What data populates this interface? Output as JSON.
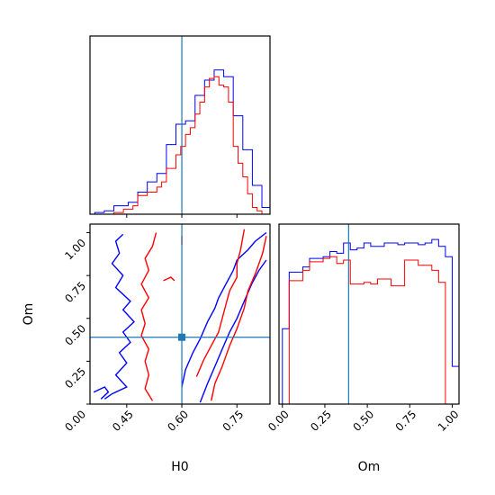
{
  "chart_data": {
    "type": "corner-plot",
    "parameters": [
      "H0",
      "Om"
    ],
    "truth": {
      "H0": 0.6,
      "Om": 0.39
    },
    "colors": {
      "chain_a": "#0000ff",
      "chain_b": "#ff0000",
      "truth": "#1f77b4",
      "axes": "#000000"
    },
    "panels": {
      "hist_H0": {
        "type": "histogram",
        "xlabel": "",
        "xlim": [
          0.35,
          0.84
        ],
        "ylim": [
          0,
          1.05
        ],
        "bins": [
          0.35,
          0.363,
          0.376,
          0.389,
          0.402,
          0.415,
          0.428,
          0.441,
          0.454,
          0.467,
          0.48,
          0.493,
          0.506,
          0.519,
          0.532,
          0.545,
          0.558,
          0.571,
          0.584,
          0.597,
          0.61,
          0.623,
          0.636,
          0.649,
          0.662,
          0.675,
          0.688,
          0.701,
          0.714,
          0.727,
          0.74,
          0.753,
          0.766,
          0.779,
          0.792,
          0.805,
          0.818,
          0.831,
          0.84
        ],
        "series": [
          {
            "name": "",
            "color": "#0000ff",
            "values": [
              0,
              0.01,
              0.01,
              0.02,
              0.02,
              0.05,
              0.05,
              0.05,
              0.07,
              0.07,
              0.13,
              0.13,
              0.19,
              0.19,
              0.24,
              0.24,
              0.41,
              0.41,
              0.53,
              0.53,
              0.55,
              0.55,
              0.7,
              0.7,
              0.79,
              0.79,
              0.85,
              0.85,
              0.81,
              0.81,
              0.58,
              0.58,
              0.38,
              0.38,
              0.17,
              0.17,
              0.04,
              0.04
            ]
          },
          {
            "name": "",
            "color": "#ff0000",
            "values": [
              0,
              0,
              0,
              0,
              0,
              0.01,
              0.01,
              0.03,
              0.03,
              0.05,
              0.11,
              0.11,
              0.13,
              0.13,
              0.16,
              0.19,
              0.27,
              0.27,
              0.35,
              0.4,
              0.47,
              0.51,
              0.59,
              0.66,
              0.75,
              0.8,
              0.81,
              0.76,
              0.75,
              0.66,
              0.4,
              0.3,
              0.22,
              0.12,
              0.04,
              0.02,
              0,
              0
            ]
          }
        ]
      },
      "contour_H0_Om": {
        "type": "contour",
        "xlabel": "H0",
        "ylabel": "Om",
        "xlim": [
          0.35,
          0.84
        ],
        "ylim": [
          0.0,
          1.05
        ],
        "xticks": [
          "0.45",
          "0.60",
          "0.75"
        ],
        "yticks": [
          "0.00",
          "0.25",
          "0.50",
          "0.75",
          "1.00"
        ],
        "contours": [
          {
            "color": "#0000ff",
            "points": [
              [
                0.44,
                0.99
              ],
              [
                0.42,
                0.95
              ],
              [
                0.43,
                0.88
              ],
              [
                0.41,
                0.82
              ],
              [
                0.44,
                0.75
              ],
              [
                0.42,
                0.68
              ],
              [
                0.46,
                0.6
              ],
              [
                0.44,
                0.55
              ],
              [
                0.47,
                0.48
              ],
              [
                0.44,
                0.42
              ],
              [
                0.46,
                0.36
              ],
              [
                0.43,
                0.3
              ],
              [
                0.45,
                0.24
              ],
              [
                0.42,
                0.17
              ],
              [
                0.45,
                0.1
              ],
              [
                0.41,
                0.06
              ],
              [
                0.39,
                0.03
              ]
            ]
          },
          {
            "color": "#0000ff",
            "points": [
              [
                0.6,
                0.1
              ],
              [
                0.61,
                0.2
              ],
              [
                0.63,
                0.3
              ],
              [
                0.65,
                0.38
              ],
              [
                0.67,
                0.48
              ],
              [
                0.69,
                0.56
              ],
              [
                0.7,
                0.62
              ],
              [
                0.72,
                0.7
              ],
              [
                0.74,
                0.78
              ],
              [
                0.75,
                0.84
              ],
              [
                0.78,
                0.9
              ],
              [
                0.8,
                0.95
              ],
              [
                0.83,
                1.0
              ]
            ]
          },
          {
            "color": "#0000ff",
            "points": [
              [
                0.65,
                0.01
              ],
              [
                0.67,
                0.12
              ],
              [
                0.69,
                0.22
              ],
              [
                0.71,
                0.32
              ],
              [
                0.73,
                0.42
              ],
              [
                0.75,
                0.5
              ],
              [
                0.77,
                0.6
              ],
              [
                0.79,
                0.7
              ],
              [
                0.81,
                0.78
              ],
              [
                0.83,
                0.84
              ]
            ]
          },
          {
            "color": "#0000ff",
            "points": [
              [
                0.36,
                0.07
              ],
              [
                0.39,
                0.1
              ],
              [
                0.4,
                0.07
              ],
              [
                0.38,
                0.03
              ]
            ]
          },
          {
            "color": "#ff0000",
            "points": [
              [
                0.53,
                1.0
              ],
              [
                0.52,
                0.92
              ],
              [
                0.5,
                0.85
              ],
              [
                0.51,
                0.78
              ],
              [
                0.49,
                0.7
              ],
              [
                0.51,
                0.62
              ],
              [
                0.49,
                0.55
              ],
              [
                0.5,
                0.47
              ],
              [
                0.49,
                0.4
              ],
              [
                0.51,
                0.32
              ],
              [
                0.5,
                0.25
              ],
              [
                0.51,
                0.17
              ],
              [
                0.5,
                0.09
              ],
              [
                0.52,
                0.02
              ]
            ]
          },
          {
            "color": "#ff0000",
            "points": [
              [
                0.64,
                0.16
              ],
              [
                0.66,
                0.26
              ],
              [
                0.68,
                0.34
              ],
              [
                0.7,
                0.42
              ],
              [
                0.71,
                0.5
              ],
              [
                0.72,
                0.58
              ],
              [
                0.73,
                0.66
              ],
              [
                0.75,
                0.74
              ],
              [
                0.75,
                0.82
              ],
              [
                0.76,
                0.9
              ],
              [
                0.77,
                1.02
              ]
            ]
          },
          {
            "color": "#ff0000",
            "points": [
              [
                0.68,
                0.02
              ],
              [
                0.69,
                0.12
              ],
              [
                0.71,
                0.22
              ],
              [
                0.73,
                0.34
              ],
              [
                0.75,
                0.44
              ],
              [
                0.77,
                0.56
              ],
              [
                0.78,
                0.66
              ],
              [
                0.8,
                0.76
              ],
              [
                0.82,
                0.88
              ],
              [
                0.83,
                0.98
              ]
            ]
          },
          {
            "color": "#ff0000",
            "points": [
              [
                0.55,
                0.72
              ],
              [
                0.57,
                0.74
              ],
              [
                0.58,
                0.72
              ]
            ]
          },
          {
            "color": "#ff0000",
            "points": [
              [
                0.6,
                0.93
              ],
              [
                0.6,
                0.98
              ]
            ]
          }
        ]
      },
      "hist_Om": {
        "type": "histogram",
        "xlabel": "Om",
        "xlim": [
          -0.02,
          1.04
        ],
        "ylim": [
          0,
          1.05
        ],
        "xticks": [
          "0.00",
          "0.25",
          "0.50",
          "0.75",
          "1.00"
        ],
        "bins": [
          0.0,
          0.04,
          0.08,
          0.12,
          0.16,
          0.2,
          0.24,
          0.28,
          0.32,
          0.36,
          0.4,
          0.44,
          0.48,
          0.52,
          0.56,
          0.6,
          0.64,
          0.68,
          0.72,
          0.76,
          0.8,
          0.84,
          0.88,
          0.92,
          0.96,
          1.0,
          1.04
        ],
        "series": [
          {
            "name": "",
            "color": "#0000ff",
            "values": [
              0.44,
              0.77,
              0.77,
              0.8,
              0.85,
              0.85,
              0.86,
              0.89,
              0.88,
              0.94,
              0.9,
              0.91,
              0.94,
              0.92,
              0.92,
              0.94,
              0.94,
              0.93,
              0.94,
              0.94,
              0.93,
              0.94,
              0.96,
              0.92,
              0.86,
              0.22
            ]
          },
          {
            "name": "",
            "color": "#ff0000",
            "values": [
              0.0,
              0.72,
              0.72,
              0.78,
              0.83,
              0.83,
              0.85,
              0.86,
              0.82,
              0.84,
              0.7,
              0.7,
              0.71,
              0.7,
              0.73,
              0.73,
              0.69,
              0.69,
              0.84,
              0.84,
              0.81,
              0.81,
              0.78,
              0.71,
              0.0,
              0.0
            ]
          }
        ]
      }
    }
  }
}
